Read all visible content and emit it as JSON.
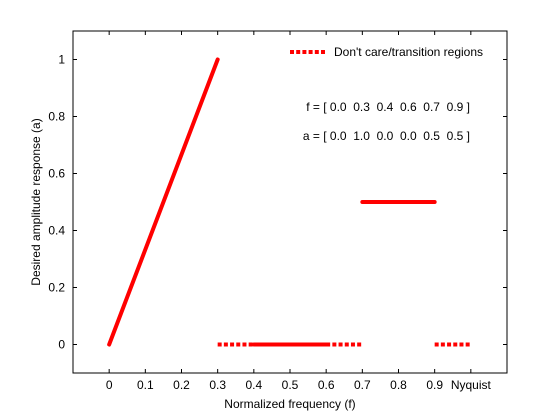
{
  "chart_data": {
    "type": "line",
    "xlabel": "Normalized frequency (f)",
    "ylabel": "Desired amplitude response (a)",
    "xlim": [
      -0.1,
      1.1
    ],
    "ylim": [
      -0.1,
      1.1
    ],
    "x_ticks": [
      {
        "value": 0,
        "label": "0"
      },
      {
        "value": 0.1,
        "label": "0.1"
      },
      {
        "value": 0.2,
        "label": "0.2"
      },
      {
        "value": 0.3,
        "label": "0.3"
      },
      {
        "value": 0.4,
        "label": "0.4"
      },
      {
        "value": 0.5,
        "label": "0.5"
      },
      {
        "value": 0.6,
        "label": "0.6"
      },
      {
        "value": 0.7,
        "label": "0.7"
      },
      {
        "value": 0.8,
        "label": "0.8"
      },
      {
        "value": 0.9,
        "label": "0.9"
      },
      {
        "value": 1.0,
        "label": "Nyquist"
      }
    ],
    "y_ticks": [
      {
        "value": 0,
        "label": "0"
      },
      {
        "value": 0.2,
        "label": "0.2"
      },
      {
        "value": 0.4,
        "label": "0.4"
      },
      {
        "value": 0.6,
        "label": "0.6"
      },
      {
        "value": 0.8,
        "label": "0.8"
      },
      {
        "value": 1,
        "label": "1"
      }
    ],
    "grid": false,
    "legend": {
      "position": "top-right",
      "label": "Don't care/transition regions"
    },
    "series": [
      {
        "style": "solid",
        "x": [
          0.0,
          0.3
        ],
        "y": [
          0.0,
          1.0
        ]
      },
      {
        "style": "solid",
        "x": [
          0.4,
          0.6
        ],
        "y": [
          0.0,
          0.0
        ]
      },
      {
        "style": "solid",
        "x": [
          0.7,
          0.9
        ],
        "y": [
          0.5,
          0.5
        ]
      },
      {
        "style": "dotted",
        "name": "Don't care/transition regions",
        "x": [
          0.3,
          0.4
        ],
        "y": [
          0.0,
          0.0
        ]
      },
      {
        "style": "dotted",
        "x": [
          0.6,
          0.7
        ],
        "y": [
          0.0,
          0.0
        ]
      },
      {
        "style": "dotted",
        "x": [
          0.9,
          1.0
        ],
        "y": [
          0.0,
          0.0
        ]
      }
    ],
    "annotations": [
      {
        "text": "f = [ 0.0  0.3  0.4  0.6  0.7  0.9 ]"
      },
      {
        "text": "a = [ 0.0  1.0  0.0  0.0  0.5  0.5 ]"
      }
    ],
    "colors": {
      "line": "#ff0000",
      "axes": "#000000",
      "background": "#ffffff"
    }
  }
}
